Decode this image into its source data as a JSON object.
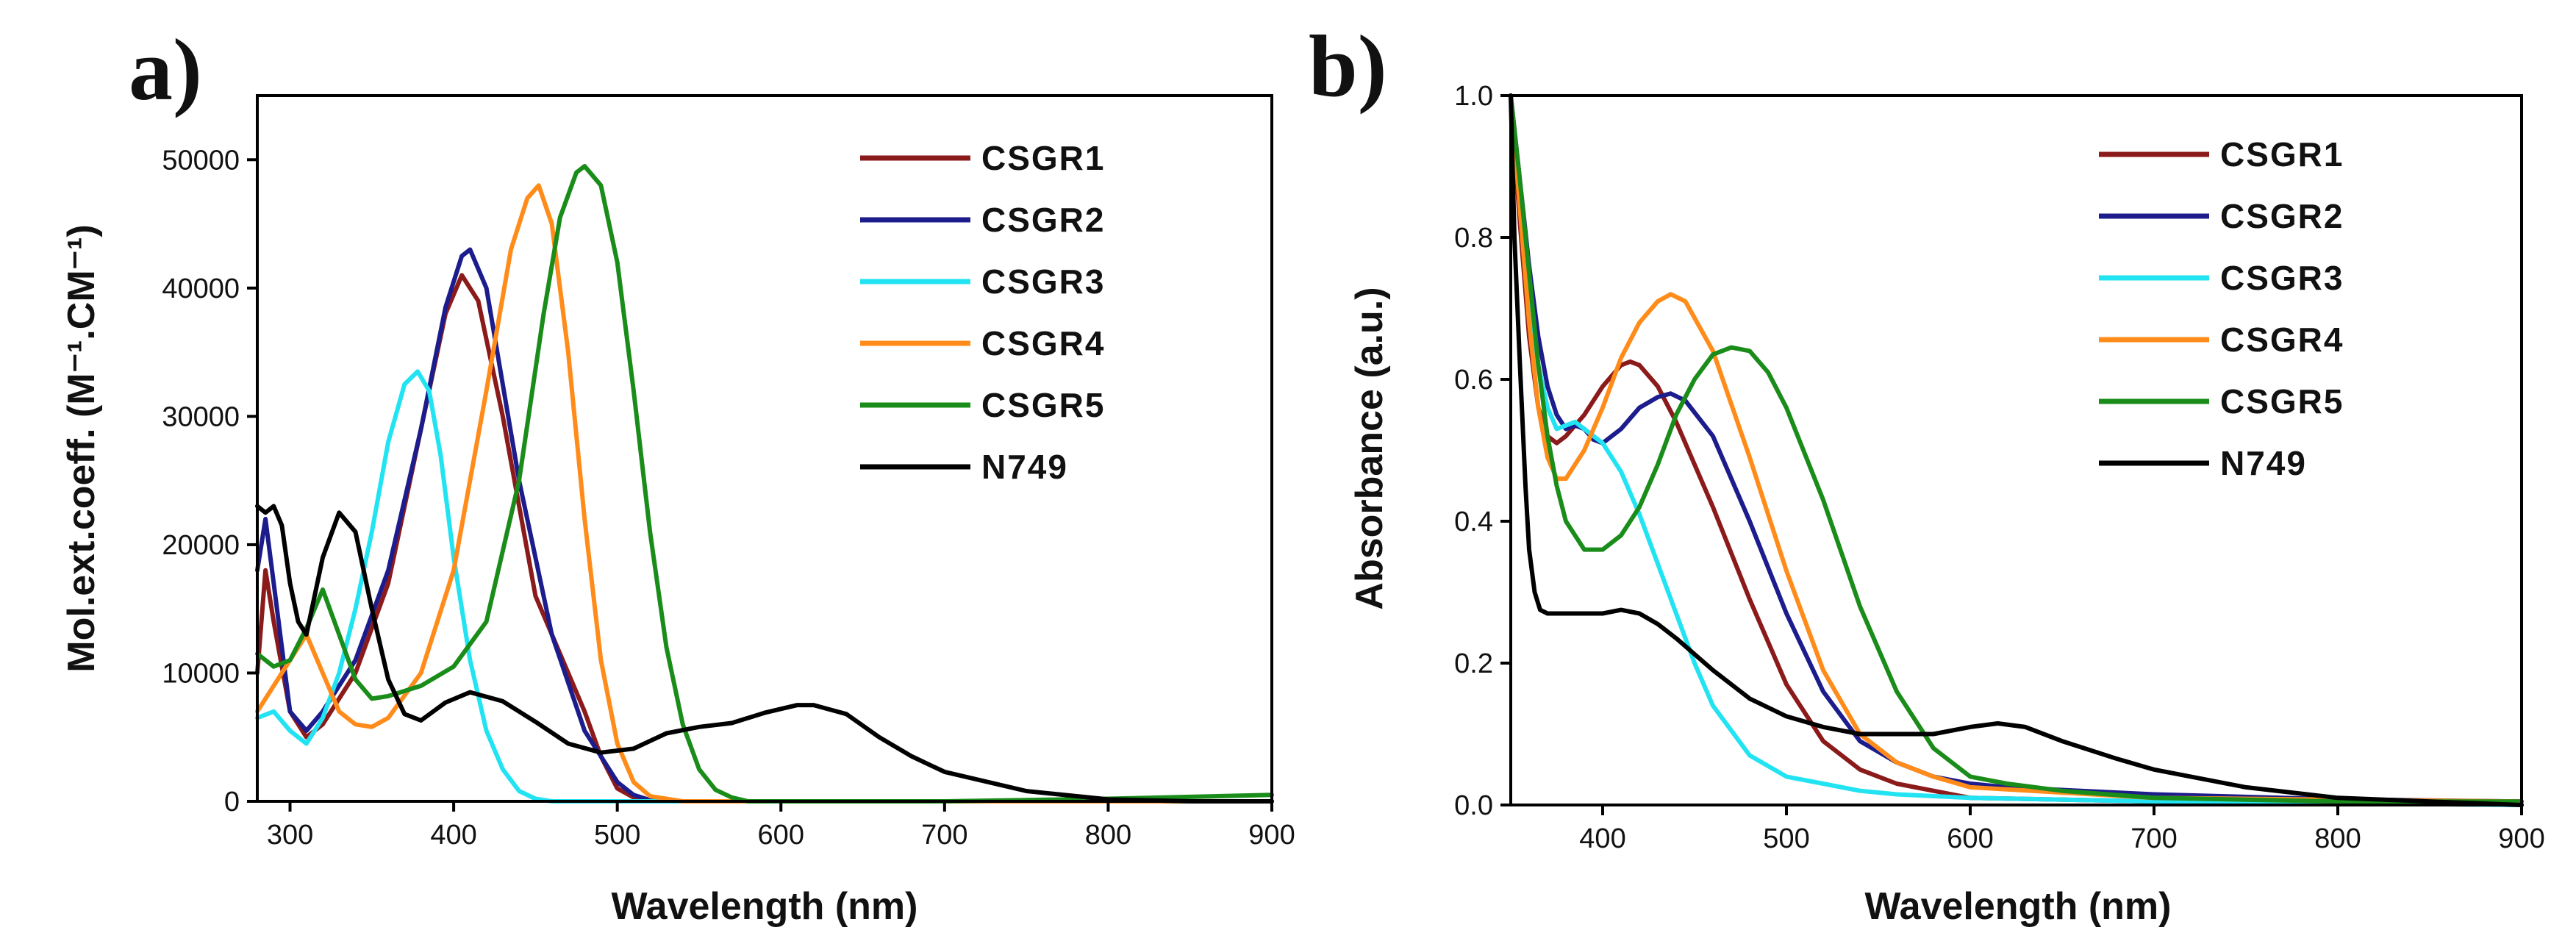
{
  "chart_data": [
    {
      "type": "line",
      "panel_label": "a)",
      "xlabel": "Wavelength (nm)",
      "ylabel": "Mol.ext.coeff. (M⁻¹.CM⁻¹)",
      "xlim": [
        280,
        900
      ],
      "ylim": [
        0,
        55000
      ],
      "xticks": [
        300,
        400,
        500,
        600,
        700,
        800,
        900
      ],
      "yticks": [
        0,
        10000,
        20000,
        30000,
        40000,
        50000
      ],
      "legend_position": "top-right",
      "series": [
        {
          "name": "CSGR1",
          "color": "#8B1A1A",
          "x": [
            280,
            285,
            290,
            300,
            310,
            320,
            340,
            360,
            380,
            395,
            405,
            415,
            430,
            450,
            465,
            480,
            490,
            500,
            510,
            520,
            540,
            600,
            700,
            900
          ],
          "y": [
            10000,
            18000,
            14000,
            7000,
            5000,
            6000,
            10000,
            17000,
            29000,
            38000,
            41000,
            39000,
            30000,
            16000,
            11500,
            7000,
            3500,
            1000,
            300,
            0,
            0,
            0,
            0,
            0
          ]
        },
        {
          "name": "CSGR2",
          "color": "#1C1C8C",
          "x": [
            280,
            285,
            290,
            300,
            310,
            320,
            340,
            360,
            380,
            395,
            405,
            410,
            420,
            440,
            460,
            480,
            500,
            510,
            520,
            540,
            600,
            700,
            900
          ],
          "y": [
            18000,
            22000,
            17000,
            7000,
            5500,
            7000,
            11000,
            18000,
            29000,
            38500,
            42500,
            43000,
            40000,
            25000,
            13000,
            5500,
            1500,
            500,
            100,
            0,
            0,
            0,
            0
          ]
        },
        {
          "name": "CSGR3",
          "color": "#22E3F2",
          "x": [
            280,
            290,
            300,
            310,
            320,
            330,
            340,
            350,
            360,
            370,
            378,
            385,
            392,
            400,
            410,
            420,
            430,
            440,
            450,
            460,
            500,
            600,
            900
          ],
          "y": [
            6500,
            7000,
            5500,
            4500,
            6500,
            10000,
            15000,
            21000,
            28000,
            32500,
            33500,
            32000,
            27000,
            19000,
            11000,
            5500,
            2500,
            800,
            200,
            0,
            0,
            0,
            0
          ]
        },
        {
          "name": "CSGR4",
          "color": "#FF8C1A",
          "x": [
            280,
            290,
            300,
            310,
            320,
            330,
            340,
            350,
            360,
            380,
            400,
            420,
            435,
            445,
            452,
            460,
            470,
            480,
            490,
            500,
            510,
            520,
            540,
            900
          ],
          "y": [
            7000,
            9000,
            11000,
            13000,
            10000,
            7000,
            6000,
            5800,
            6500,
            10000,
            18000,
            32000,
            43000,
            47000,
            48000,
            45000,
            35000,
            22000,
            11000,
            4500,
            1500,
            400,
            0,
            0
          ]
        },
        {
          "name": "CSGR5",
          "color": "#1A8C1A",
          "x": [
            280,
            290,
            300,
            310,
            320,
            330,
            340,
            350,
            360,
            380,
            400,
            420,
            440,
            455,
            465,
            475,
            480,
            490,
            500,
            510,
            520,
            530,
            540,
            550,
            560,
            570,
            580,
            600,
            700,
            800,
            900
          ],
          "y": [
            11500,
            10500,
            11000,
            13500,
            16500,
            13000,
            9500,
            8000,
            8200,
            9000,
            10500,
            14000,
            25000,
            38000,
            45500,
            49000,
            49500,
            48000,
            42000,
            32000,
            21000,
            12000,
            6000,
            2500,
            900,
            300,
            0,
            0,
            0,
            200,
            500
          ]
        },
        {
          "name": "N749",
          "color": "#000000",
          "x": [
            280,
            285,
            290,
            295,
            300,
            305,
            310,
            320,
            330,
            340,
            350,
            360,
            370,
            380,
            395,
            410,
            430,
            450,
            470,
            490,
            510,
            530,
            550,
            570,
            590,
            610,
            620,
            640,
            660,
            680,
            700,
            750,
            800,
            850,
            900
          ],
          "y": [
            23000,
            22500,
            23000,
            21500,
            17000,
            14000,
            13000,
            19000,
            22500,
            21000,
            15000,
            9500,
            6800,
            6300,
            7700,
            8500,
            7800,
            6200,
            4500,
            3800,
            4100,
            5300,
            5800,
            6100,
            6900,
            7500,
            7500,
            6800,
            5000,
            3500,
            2300,
            800,
            150,
            0,
            0
          ]
        }
      ]
    },
    {
      "type": "line",
      "panel_label": "b)",
      "xlabel": "Wavelength (nm)",
      "ylabel": "Absorbance (a.u.)",
      "xlim": [
        350,
        900
      ],
      "ylim": [
        0,
        1.0
      ],
      "xticks": [
        400,
        500,
        600,
        700,
        800,
        900
      ],
      "yticks": [
        "0.0",
        "0.2",
        "0.4",
        "0.6",
        "0.8",
        "1.0"
      ],
      "legend_position": "top-right",
      "series": [
        {
          "name": "CSGR1",
          "color": "#8B1A1A",
          "x": [
            350,
            355,
            360,
            365,
            370,
            375,
            380,
            390,
            400,
            410,
            415,
            420,
            430,
            440,
            460,
            480,
            500,
            520,
            540,
            560,
            580,
            600,
            700,
            900
          ],
          "y": [
            1.0,
            0.82,
            0.66,
            0.56,
            0.52,
            0.51,
            0.52,
            0.55,
            0.59,
            0.62,
            0.625,
            0.62,
            0.59,
            0.54,
            0.42,
            0.29,
            0.17,
            0.09,
            0.05,
            0.03,
            0.02,
            0.01,
            0.005,
            0.0
          ]
        },
        {
          "name": "CSGR2",
          "color": "#1C1C8C",
          "x": [
            350,
            355,
            360,
            365,
            370,
            375,
            380,
            385,
            390,
            395,
            400,
            410,
            420,
            430,
            437,
            445,
            460,
            480,
            500,
            520,
            540,
            560,
            580,
            600,
            620,
            700,
            800,
            900
          ],
          "y": [
            1.0,
            0.88,
            0.76,
            0.66,
            0.59,
            0.55,
            0.53,
            0.535,
            0.53,
            0.515,
            0.51,
            0.53,
            0.56,
            0.575,
            0.58,
            0.57,
            0.52,
            0.4,
            0.27,
            0.16,
            0.09,
            0.06,
            0.04,
            0.03,
            0.025,
            0.015,
            0.008,
            0.005
          ]
        },
        {
          "name": "CSGR3",
          "color": "#22E3F2",
          "x": [
            350,
            355,
            360,
            365,
            370,
            375,
            380,
            385,
            390,
            400,
            410,
            420,
            430,
            440,
            450,
            460,
            480,
            500,
            520,
            540,
            560,
            600,
            700,
            900
          ],
          "y": [
            1.0,
            0.85,
            0.72,
            0.62,
            0.56,
            0.53,
            0.535,
            0.54,
            0.53,
            0.51,
            0.47,
            0.41,
            0.34,
            0.27,
            0.2,
            0.14,
            0.07,
            0.04,
            0.03,
            0.02,
            0.015,
            0.01,
            0.005,
            0.0
          ]
        },
        {
          "name": "CSGR4",
          "color": "#FF8C1A",
          "x": [
            350,
            355,
            360,
            365,
            370,
            375,
            380,
            390,
            400,
            410,
            420,
            430,
            437,
            445,
            460,
            480,
            500,
            520,
            540,
            560,
            580,
            600,
            700,
            900
          ],
          "y": [
            1.0,
            0.84,
            0.68,
            0.56,
            0.49,
            0.46,
            0.46,
            0.5,
            0.56,
            0.63,
            0.68,
            0.71,
            0.72,
            0.71,
            0.64,
            0.49,
            0.33,
            0.19,
            0.1,
            0.06,
            0.04,
            0.025,
            0.01,
            0.005
          ]
        },
        {
          "name": "CSGR5",
          "color": "#1A8C1A",
          "x": [
            350,
            355,
            360,
            365,
            370,
            375,
            380,
            390,
            400,
            410,
            420,
            430,
            440,
            450,
            460,
            470,
            480,
            490,
            500,
            520,
            540,
            560,
            580,
            600,
            620,
            650,
            700,
            800,
            900
          ],
          "y": [
            1.0,
            0.88,
            0.75,
            0.62,
            0.52,
            0.45,
            0.4,
            0.36,
            0.36,
            0.38,
            0.42,
            0.48,
            0.55,
            0.6,
            0.635,
            0.645,
            0.64,
            0.61,
            0.56,
            0.43,
            0.28,
            0.16,
            0.08,
            0.04,
            0.03,
            0.02,
            0.01,
            0.005,
            0.005
          ]
        },
        {
          "name": "N749",
          "color": "#000000",
          "x": [
            350,
            352,
            355,
            358,
            360,
            363,
            366,
            370,
            380,
            390,
            400,
            410,
            420,
            430,
            440,
            460,
            480,
            500,
            520,
            540,
            560,
            580,
            600,
            615,
            630,
            650,
            680,
            700,
            750,
            800,
            850,
            900
          ],
          "y": [
            1.0,
            0.8,
            0.62,
            0.45,
            0.36,
            0.3,
            0.275,
            0.27,
            0.27,
            0.27,
            0.27,
            0.275,
            0.27,
            0.255,
            0.235,
            0.19,
            0.15,
            0.125,
            0.11,
            0.1,
            0.1,
            0.1,
            0.11,
            0.115,
            0.11,
            0.09,
            0.065,
            0.05,
            0.025,
            0.01,
            0.005,
            0.0
          ]
        }
      ]
    }
  ]
}
